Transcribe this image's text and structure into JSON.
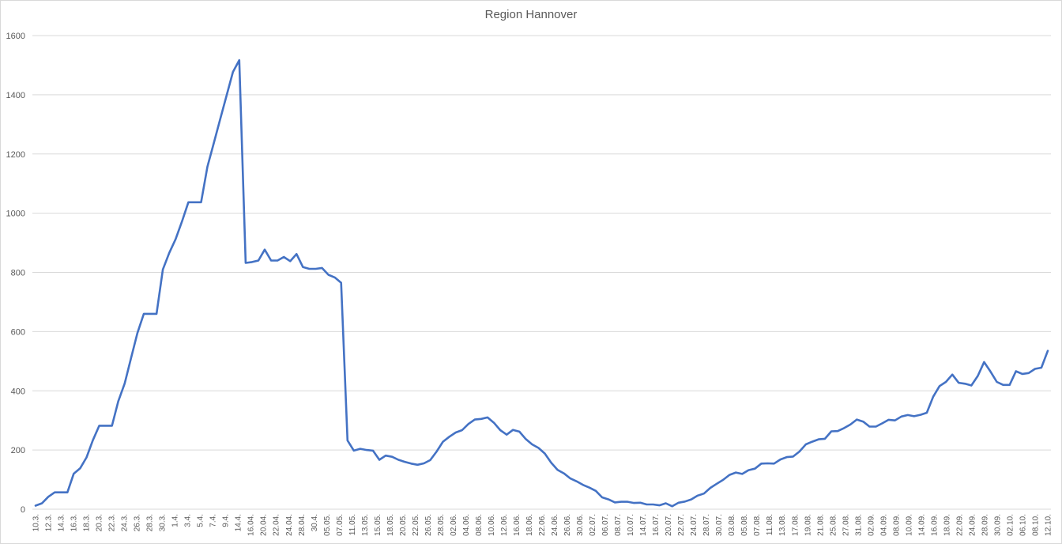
{
  "chart_data": {
    "type": "line",
    "title": "Region Hannover",
    "xlabel": "",
    "ylabel": "",
    "ylim": [
      0,
      1600
    ],
    "yticks": [
      0,
      200,
      400,
      600,
      800,
      1000,
      1200,
      1400,
      1600
    ],
    "grid": true,
    "legend": "none",
    "line_color": "#4472c4",
    "x_tick_labels": [
      "10.3.",
      "12.3.",
      "14.3.",
      "16.3.",
      "18.3.",
      "20.3.",
      "22.3.",
      "24.3.",
      "26.3.",
      "28.3.",
      "30.3.",
      "1.4.",
      "3.4.",
      "5.4.",
      "7.4.",
      "9.4.",
      "14.4.",
      "16.04.",
      "20.04.",
      "22.04.",
      "24.04.",
      "28.04.",
      "30.4.",
      "05.05.",
      "07.05.",
      "11.05.",
      "13.05.",
      "15.05.",
      "18.05.",
      "20.05.",
      "22.05.",
      "26.05.",
      "28.05.",
      "02.06.",
      "04.06.",
      "08.06.",
      "10.06.",
      "12.06.",
      "16.06.",
      "18.06.",
      "22.06.",
      "24.06.",
      "26.06.",
      "30.06.",
      "02.07.",
      "06.07.",
      "08.07.",
      "10.07.",
      "14.07.",
      "16.07.",
      "20.07.",
      "22.07.",
      "24.07.",
      "28.07.",
      "30.07.",
      "03.08.",
      "05.08.",
      "07.08.",
      "11.08.",
      "13.08.",
      "17.08.",
      "19.08.",
      "21.08.",
      "25.08.",
      "27.08.",
      "31.08.",
      "02.09.",
      "04.09.",
      "08.09.",
      "10.09.",
      "14.09.",
      "16.09.",
      "18.09.",
      "22.09.",
      "24.09.",
      "28.09.",
      "30.09.",
      "02.10.",
      "06.10.",
      "08.10.",
      "12.10."
    ],
    "values": [
      12,
      20,
      42,
      57,
      57,
      57,
      120,
      138,
      175,
      233,
      282,
      282,
      282,
      365,
      425,
      510,
      595,
      660,
      660,
      660,
      810,
      866,
      912,
      972,
      1037,
      1037,
      1037,
      1157,
      1237,
      1317,
      1397,
      1477,
      1517,
      832,
      835,
      840,
      877,
      840,
      840,
      852,
      838,
      862,
      818,
      812,
      812,
      815,
      792,
      783,
      765,
      232,
      198,
      204,
      200,
      198,
      167,
      181,
      177,
      167,
      160,
      154,
      150,
      155,
      166,
      195,
      228,
      245,
      259,
      267,
      288,
      303,
      305,
      310,
      292,
      267,
      252,
      268,
      262,
      237,
      219,
      207,
      188,
      157,
      133,
      121,
      104,
      94,
      82,
      73,
      62,
      40,
      33,
      23,
      25,
      25,
      21,
      22,
      16,
      16,
      13,
      20,
      10,
      22,
      26,
      33,
      46,
      53,
      72,
      86,
      99,
      116,
      124,
      119,
      132,
      137,
      154,
      155,
      154,
      168,
      176,
      178,
      195,
      219,
      228,
      236,
      238,
      263,
      264,
      274,
      286,
      303,
      296,
      279,
      279,
      290,
      302,
      300,
      313,
      318,
      314,
      319,
      326,
      380,
      416,
      430,
      455,
      427,
      424,
      418,
      450,
      497,
      465,
      430,
      420,
      420,
      466,
      457,
      460,
      474,
      478,
      535
    ]
  }
}
